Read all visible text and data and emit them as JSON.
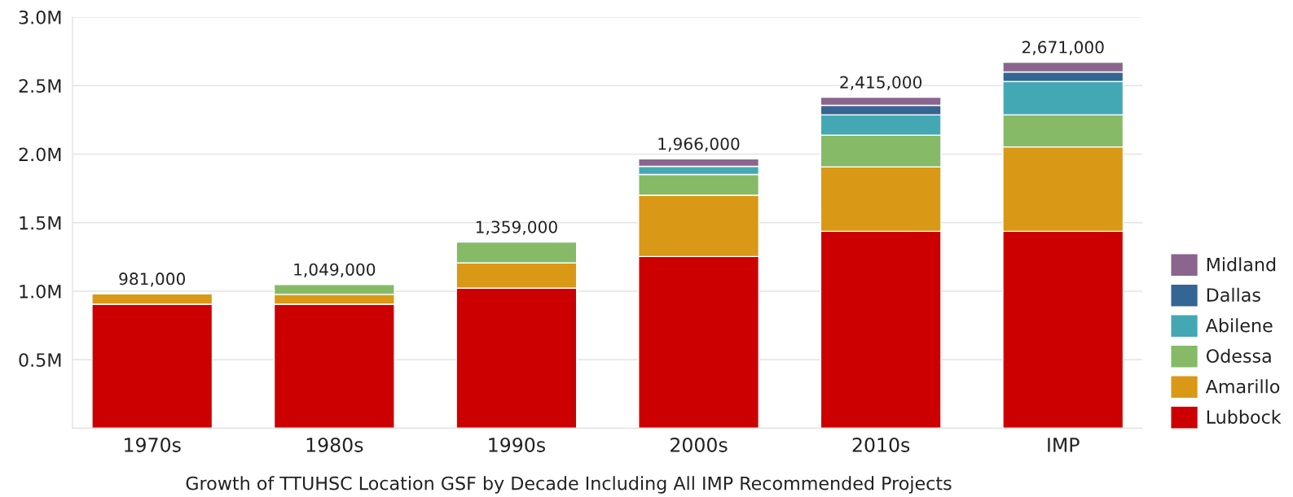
{
  "chart_data": {
    "type": "bar",
    "stacked": true,
    "title": "Growth of TTUHSC Location GSF by Decade Including All IMP Recommended Projects",
    "categories": [
      "1970s",
      "1980s",
      "1990s",
      "2000s",
      "2010s",
      "IMP"
    ],
    "series": [
      {
        "name": "Lubbock",
        "color": "#cc0000",
        "values": [
          905000,
          905000,
          1022000,
          1253000,
          1437000,
          1437000
        ]
      },
      {
        "name": "Amarillo",
        "color": "#d99816",
        "values": [
          76000,
          72000,
          184000,
          447000,
          470000,
          616000
        ]
      },
      {
        "name": "Odessa",
        "color": "#86ba67",
        "values": [
          null,
          72000,
          153000,
          152000,
          231000,
          234000
        ]
      },
      {
        "name": "Abilene",
        "color": "#44a8b4",
        "values": [
          null,
          null,
          null,
          59000,
          149000,
          243000
        ]
      },
      {
        "name": "Dallas",
        "color": "#356592",
        "values": [
          null,
          null,
          null,
          null,
          69000,
          69000
        ]
      },
      {
        "name": "Midland",
        "color": "#8a658d",
        "values": [
          null,
          null,
          null,
          55000,
          59000,
          72000
        ]
      }
    ],
    "totals": [
      "981,000",
      "1,049,000",
      "1,359,000",
      "1,966,000",
      "2,415,000",
      "2,671,000"
    ],
    "ylim": [
      0,
      3000000
    ],
    "yticks": [
      {
        "value": 0,
        "label": null
      },
      {
        "value": 500000,
        "label": "0.5M"
      },
      {
        "value": 1000000,
        "label": "1.0M"
      },
      {
        "value": 1500000,
        "label": "1.5M"
      },
      {
        "value": 2000000,
        "label": "2.0M"
      },
      {
        "value": 2500000,
        "label": "2.5M"
      },
      {
        "value": 3000000,
        "label": "3.0M"
      }
    ],
    "grid": "y",
    "legend": "right"
  }
}
